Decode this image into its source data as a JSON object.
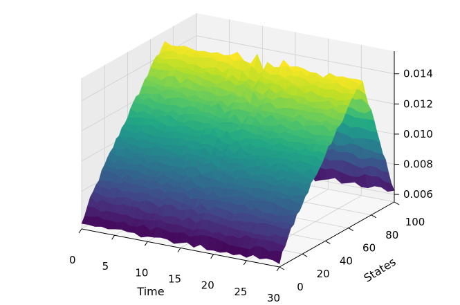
{
  "chart_data": {
    "type": "surface",
    "title": "",
    "xlabel": "Time",
    "ylabel": "States",
    "zlabel": "",
    "xlim": [
      0,
      30
    ],
    "ylim": [
      0,
      100
    ],
    "zlim": [
      0.0055,
      0.0155
    ],
    "x_ticks": [
      "0",
      "5",
      "10",
      "15",
      "20",
      "25",
      "30"
    ],
    "y_ticks": [
      "0",
      "20",
      "40",
      "60",
      "80",
      "100"
    ],
    "z_ticks": [
      "0.006",
      "0.008",
      "0.010",
      "0.012",
      "0.014"
    ],
    "colormap": "viridis",
    "grid": true,
    "surface_description": {
      "time_range": [
        0,
        30
      ],
      "state_range": [
        0,
        100
      ],
      "value_at_state_0": 0.0058,
      "peak_value": 0.0148,
      "peak_state": 72,
      "value_at_state_100": 0.0062
    }
  },
  "colors": {
    "pane_left": "#ebebeb",
    "pane_back": "#f2f2f2",
    "pane_floor": "#f7f7f7",
    "grid": "#cfcfcf"
  }
}
